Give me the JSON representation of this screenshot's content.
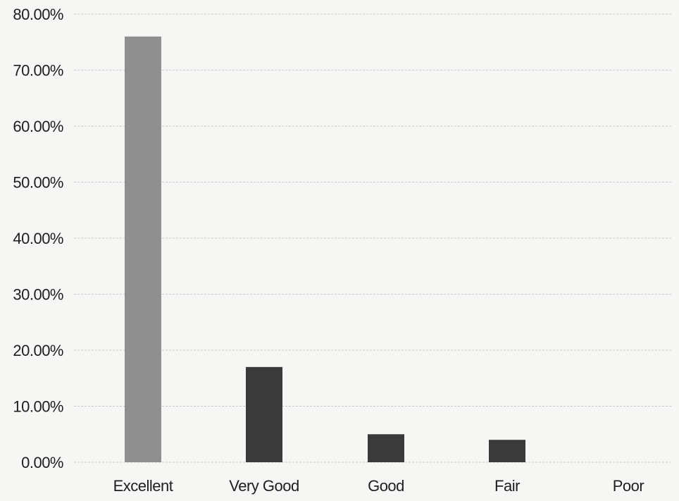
{
  "chart_data": {
    "type": "bar",
    "title": "",
    "xlabel": "",
    "ylabel": "",
    "categories": [
      "Excellent",
      "Very Good",
      "Good",
      "Fair",
      "Poor"
    ],
    "values": [
      76.0,
      17.0,
      5.0,
      4.0,
      0.0
    ],
    "ylim": [
      0,
      80
    ],
    "y_ticks": [
      "0.00%",
      "10.00%",
      "20.00%",
      "30.00%",
      "40.00%",
      "50.00%",
      "60.00%",
      "70.00%",
      "80.00%"
    ],
    "y_tick_values": [
      0,
      10,
      20,
      30,
      40,
      50,
      60,
      70,
      80
    ],
    "grid": true,
    "legend": "none",
    "colors": {
      "first_bar": "#8f8f8f",
      "other_bars": "#3a3a3a",
      "background": "#f6f6f4"
    }
  }
}
